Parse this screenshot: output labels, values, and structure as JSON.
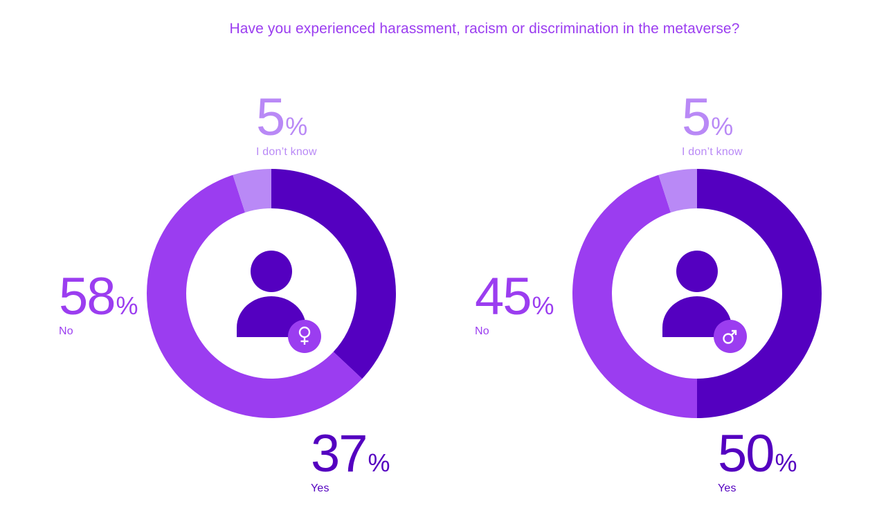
{
  "chart_data": [
    {
      "type": "pie",
      "title": "Have you experienced harassment, racism or discrimination in the metaverse?",
      "categories": [
        "Yes",
        "No",
        "I don’t know"
      ],
      "values": [
        37,
        58,
        5
      ],
      "percent_sign": "%",
      "icon": "female-symbol-icon",
      "colors": {
        "Yes": "#5400c0",
        "No": "#9b3df0",
        "I don’t know": "#b989f6"
      }
    },
    {
      "type": "pie",
      "categories": [
        "Yes",
        "No",
        "I don’t know"
      ],
      "values": [
        50,
        45,
        5
      ],
      "percent_sign": "%",
      "icon": "male-symbol-icon",
      "colors": {
        "Yes": "#5400c0",
        "No": "#9b3df0",
        "I don’t know": "#b989f6"
      }
    }
  ]
}
